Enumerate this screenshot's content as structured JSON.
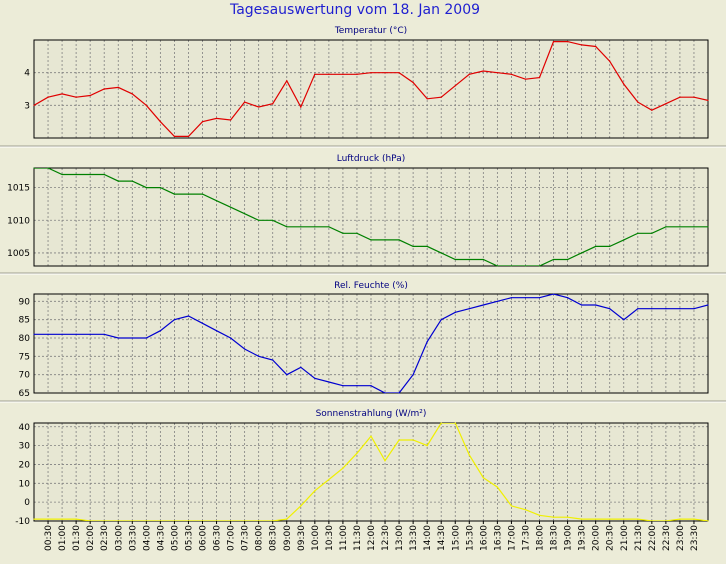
{
  "title": "Tagesauswertung vom 18. Jan 2009",
  "colors": {
    "background": "#ececd8",
    "plot": "#e7e7d3",
    "grid": "#808080",
    "title": "#1f1fd0"
  },
  "x_labels": [
    "00:30",
    "01:00",
    "01:30",
    "02:00",
    "02:30",
    "03:00",
    "03:30",
    "04:00",
    "04:30",
    "05:00",
    "05:30",
    "06:00",
    "06:30",
    "07:00",
    "07:30",
    "08:00",
    "08:30",
    "09:00",
    "09:30",
    "10:00",
    "10:30",
    "11:00",
    "11:30",
    "12:00",
    "12:30",
    "13:00",
    "13:30",
    "14:00",
    "14:30",
    "15:00",
    "15:30",
    "16:00",
    "16:30",
    "17:00",
    "17:30",
    "18:00",
    "18:30",
    "19:00",
    "19:30",
    "20:00",
    "20:30",
    "21:00",
    "21:30",
    "22:00",
    "22:30",
    "23:00",
    "23:30"
  ],
  "chart_data": [
    {
      "type": "line",
      "title": "Temperatur (°C)",
      "color": "#e00000",
      "ylim": [
        2,
        5
      ],
      "yticks": [
        3,
        4
      ],
      "x": [
        0,
        0.5,
        1,
        1.5,
        2,
        2.5,
        3,
        3.5,
        4,
        4.5,
        5,
        5.5,
        6,
        6.5,
        7,
        7.5,
        8,
        8.5,
        9,
        9.5,
        10,
        10.5,
        11,
        11.5,
        12,
        12.5,
        13,
        13.5,
        14,
        14.5,
        15,
        15.5,
        16,
        16.5,
        17,
        17.5,
        18,
        18.5,
        19,
        19.5,
        20,
        20.5,
        21,
        21.5,
        22,
        22.5,
        23,
        23.5,
        24
      ],
      "values": [
        3.0,
        3.25,
        3.35,
        3.25,
        3.3,
        3.5,
        3.55,
        3.35,
        3.0,
        2.5,
        2.05,
        2.05,
        2.5,
        2.6,
        2.55,
        3.1,
        2.95,
        3.05,
        3.75,
        2.95,
        3.95,
        3.95,
        3.95,
        3.95,
        4.0,
        4.0,
        4.0,
        3.7,
        3.2,
        3.25,
        3.6,
        3.95,
        4.05,
        4.0,
        3.95,
        3.8,
        3.85,
        4.95,
        4.95,
        4.85,
        4.8,
        4.35,
        3.65,
        3.1,
        2.85,
        3.05,
        3.25,
        3.25,
        3.15
      ]
    },
    {
      "type": "line",
      "title": "Luftdruck (hPa)",
      "color": "#008000",
      "ylim": [
        1003,
        1018
      ],
      "yticks": [
        1005,
        1010,
        1015
      ],
      "x": [
        0,
        0.5,
        1,
        1.5,
        2,
        2.5,
        3,
        3.5,
        4,
        4.5,
        5,
        5.5,
        6,
        6.5,
        7,
        7.5,
        8,
        8.5,
        9,
        9.5,
        10,
        10.5,
        11,
        11.5,
        12,
        12.5,
        13,
        13.5,
        14,
        14.5,
        15,
        15.5,
        16,
        16.5,
        17,
        17.5,
        18,
        18.5,
        19,
        19.5,
        20,
        20.5,
        21,
        21.5,
        22,
        22.5,
        23,
        23.5,
        24
      ],
      "values": [
        1018,
        1018,
        1017,
        1017,
        1017,
        1017,
        1016,
        1016,
        1015,
        1015,
        1014,
        1014,
        1014,
        1013,
        1012,
        1011,
        1010,
        1010,
        1009,
        1009,
        1009,
        1009,
        1008,
        1008,
        1007,
        1007,
        1007,
        1006,
        1006,
        1005,
        1004,
        1004,
        1004,
        1003,
        1003,
        1003,
        1003,
        1004,
        1004,
        1005,
        1006,
        1006,
        1007,
        1008,
        1008,
        1009,
        1009,
        1009,
        1009
      ]
    },
    {
      "type": "line",
      "title": "Rel. Feuchte (%)",
      "color": "#0000d0",
      "ylim": [
        65,
        92
      ],
      "yticks": [
        65,
        70,
        75,
        80,
        85,
        90
      ],
      "x": [
        0,
        0.5,
        1,
        1.5,
        2,
        2.5,
        3,
        3.5,
        4,
        4.5,
        5,
        5.5,
        6,
        6.5,
        7,
        7.5,
        8,
        8.5,
        9,
        9.5,
        10,
        10.5,
        11,
        11.5,
        12,
        12.5,
        13,
        13.5,
        14,
        14.5,
        15,
        15.5,
        16,
        16.5,
        17,
        17.5,
        18,
        18.5,
        19,
        19.5,
        20,
        20.5,
        21,
        21.5,
        22,
        22.5,
        23,
        23.5,
        24
      ],
      "values": [
        81,
        81,
        81,
        81,
        81,
        81,
        80,
        80,
        80,
        82,
        85,
        86,
        84,
        82,
        80,
        77,
        75,
        74,
        70,
        72,
        69,
        68,
        67,
        67,
        67,
        65,
        65,
        70,
        79,
        85,
        87,
        88,
        89,
        90,
        91,
        91,
        91,
        92,
        91,
        89,
        89,
        88,
        85,
        88,
        88,
        88,
        88,
        88,
        89
      ]
    },
    {
      "type": "line",
      "title": "Sonnenstrahlung (W/m²)",
      "color": "#f0f000",
      "ylim": [
        -10,
        42
      ],
      "yticks": [
        -10,
        0,
        10,
        20,
        30,
        40
      ],
      "x": [
        0,
        0.5,
        1,
        1.5,
        2,
        2.5,
        3,
        3.5,
        4,
        4.5,
        5,
        5.5,
        6,
        6.5,
        7,
        7.5,
        8,
        8.5,
        9,
        9.5,
        10,
        10.5,
        11,
        11.5,
        12,
        12.5,
        13,
        13.5,
        14,
        14.5,
        15,
        15.5,
        16,
        16.5,
        17,
        17.5,
        18,
        18.5,
        19,
        19.5,
        20,
        20.5,
        21,
        21.5,
        22,
        22.5,
        23,
        23.5,
        24
      ],
      "values": [
        -9,
        -9,
        -9,
        -9,
        -10,
        -10,
        -10,
        -10,
        -10,
        -10,
        -10,
        -10,
        -10,
        -10,
        -10,
        -10,
        -10,
        -10,
        -9,
        -2,
        6,
        12,
        18,
        26,
        35,
        22,
        33,
        33,
        30,
        42,
        42,
        25,
        13,
        8,
        -2,
        -4,
        -7,
        -8,
        -8,
        -9,
        -9,
        -9,
        -9,
        -9,
        -10,
        -10,
        -9,
        -9,
        -10
      ]
    }
  ]
}
